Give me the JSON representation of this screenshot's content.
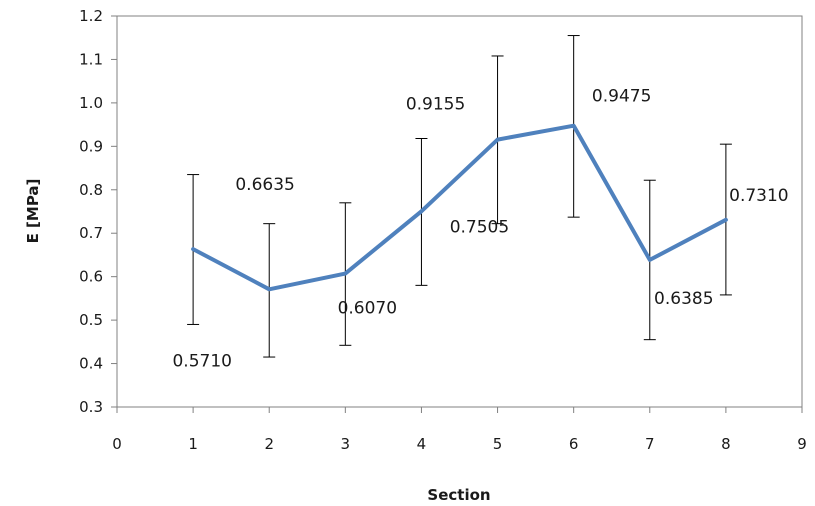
{
  "chart_data": {
    "type": "line",
    "xlabel": "Section",
    "ylabel": "E [MPa]",
    "xlim": [
      0,
      9
    ],
    "ylim": [
      0.3,
      1.2
    ],
    "x_ticks": [
      "0",
      "1",
      "2",
      "3",
      "4",
      "5",
      "6",
      "7",
      "8",
      "9"
    ],
    "y_ticks": [
      "0.3",
      "0.4",
      "0.5",
      "0.6",
      "0.7",
      "0.8",
      "0.9",
      "1.0",
      "1.1",
      "1.2"
    ],
    "grid": false,
    "series": [
      {
        "x": [
          1,
          2,
          3,
          4,
          5,
          6,
          7,
          8
        ],
        "y": [
          0.6635,
          0.571,
          0.607,
          0.7505,
          0.9155,
          0.9475,
          0.6385,
          0.731
        ],
        "labels": [
          "0.6635",
          "0.5710",
          "0.6070",
          "0.7505",
          "0.9155",
          "0.9475",
          "0.6385",
          "0.7310"
        ],
        "error_bars": [
          {
            "low": 0.49,
            "high": 0.835
          },
          {
            "low": 0.415,
            "high": 0.722
          },
          {
            "low": 0.442,
            "high": 0.77
          },
          {
            "low": 0.58,
            "high": 0.918
          },
          {
            "low": 0.722,
            "high": 1.108
          },
          {
            "low": 0.737,
            "high": 1.155
          },
          {
            "low": 0.455,
            "high": 0.822
          },
          {
            "low": 0.558,
            "high": 0.905
          }
        ],
        "color": "#4f81bd",
        "error_color": "#000000"
      }
    ]
  }
}
